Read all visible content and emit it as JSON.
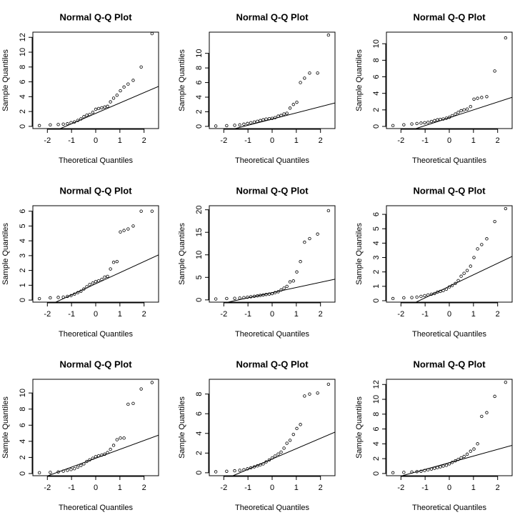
{
  "chart_data": [
    {
      "type": "qq",
      "title": "Normal Q-Q Plot",
      "x_label": "Theoretical Quantiles",
      "y_label": "Sample Quantiles",
      "xlim": [
        -2.6,
        2.6
      ],
      "xticks": [
        -2,
        -1,
        0,
        1,
        2
      ],
      "ylim": [
        -0.3,
        12.7
      ],
      "yticks": [
        0,
        2,
        4,
        6,
        8,
        10,
        12
      ],
      "color": "#000000",
      "x": [
        -2.33,
        -1.88,
        -1.55,
        -1.34,
        -1.17,
        -1.02,
        -0.88,
        -0.74,
        -0.61,
        -0.49,
        -0.37,
        -0.25,
        -0.12,
        0,
        0.12,
        0.25,
        0.37,
        0.49,
        0.61,
        0.74,
        0.88,
        1.02,
        1.17,
        1.34,
        1.55,
        1.88,
        2.33
      ],
      "values": [
        0.1,
        0.2,
        0.25,
        0.3,
        0.35,
        0.5,
        0.6,
        0.8,
        1.0,
        1.3,
        1.5,
        1.6,
        1.9,
        2.3,
        2.4,
        2.5,
        2.6,
        2.7,
        3.3,
        3.8,
        4.2,
        4.8,
        5.3,
        5.7,
        6.2,
        8.0,
        12.5
      ],
      "line": {
        "intercept": 1.75,
        "slope": 1.4
      }
    },
    {
      "type": "qq",
      "title": "Normal Q-Q Plot",
      "x_label": "Theoretical Quantiles",
      "y_label": "Sample Quantiles",
      "xlim": [
        -2.6,
        2.6
      ],
      "xticks": [
        -2,
        -1,
        0,
        1,
        2
      ],
      "ylim": [
        -0.3,
        12.9
      ],
      "yticks": [
        0,
        2,
        4,
        6,
        8,
        10
      ],
      "color": "#000000",
      "x": [
        -2.33,
        -1.88,
        -1.55,
        -1.34,
        -1.17,
        -1.02,
        -0.88,
        -0.74,
        -0.61,
        -0.49,
        -0.37,
        -0.25,
        -0.12,
        0,
        0.12,
        0.25,
        0.37,
        0.49,
        0.61,
        0.74,
        0.88,
        1.02,
        1.17,
        1.34,
        1.55,
        1.88,
        2.33
      ],
      "values": [
        0.05,
        0.1,
        0.15,
        0.2,
        0.3,
        0.4,
        0.5,
        0.6,
        0.7,
        0.8,
        0.9,
        1.0,
        1.05,
        1.1,
        1.2,
        1.4,
        1.5,
        1.7,
        1.8,
        2.5,
        3.0,
        3.3,
        6.0,
        6.6,
        7.3,
        7.3,
        12.5
      ],
      "line": {
        "intercept": 1.0,
        "slope": 0.85
      }
    },
    {
      "type": "qq",
      "title": "Normal Q-Q Plot",
      "x_label": "Theoretical Quantiles",
      "y_label": "Sample Quantiles",
      "xlim": [
        -2.6,
        2.6
      ],
      "xticks": [
        -2,
        -1,
        0,
        1,
        2
      ],
      "ylim": [
        -0.26,
        11.4
      ],
      "yticks": [
        0,
        2,
        4,
        6,
        8,
        10
      ],
      "color": "#000000",
      "x": [
        -2.33,
        -1.88,
        -1.55,
        -1.34,
        -1.17,
        -1.02,
        -0.88,
        -0.74,
        -0.61,
        -0.49,
        -0.37,
        -0.25,
        -0.12,
        0,
        0.12,
        0.25,
        0.37,
        0.49,
        0.61,
        0.74,
        0.88,
        1.02,
        1.17,
        1.34,
        1.55,
        1.88,
        2.33
      ],
      "values": [
        0.1,
        0.2,
        0.3,
        0.35,
        0.4,
        0.45,
        0.5,
        0.6,
        0.7,
        0.8,
        0.85,
        0.9,
        1.0,
        1.1,
        1.3,
        1.5,
        1.7,
        1.9,
        2.0,
        2.1,
        2.4,
        3.3,
        3.4,
        3.5,
        3.6,
        6.7,
        10.7
      ],
      "line": {
        "intercept": 1.05,
        "slope": 0.95
      }
    },
    {
      "type": "qq",
      "title": "Normal Q-Q Plot",
      "x_label": "Theoretical Quantiles",
      "y_label": "Sample Quantiles",
      "xlim": [
        -2.6,
        2.6
      ],
      "xticks": [
        -2,
        -1,
        0,
        1,
        2
      ],
      "ylim": [
        -0.14,
        6.37
      ],
      "yticks": [
        0,
        1,
        2,
        3,
        4,
        5,
        6
      ],
      "color": "#000000",
      "x": [
        -2.33,
        -1.88,
        -1.55,
        -1.34,
        -1.17,
        -1.02,
        -0.88,
        -0.74,
        -0.61,
        -0.49,
        -0.37,
        -0.25,
        -0.12,
        0,
        0.12,
        0.25,
        0.37,
        0.49,
        0.61,
        0.74,
        0.88,
        1.02,
        1.17,
        1.34,
        1.55,
        1.88,
        2.33
      ],
      "values": [
        0.1,
        0.15,
        0.18,
        0.2,
        0.25,
        0.3,
        0.4,
        0.5,
        0.6,
        0.75,
        0.9,
        1.05,
        1.15,
        1.25,
        1.3,
        1.4,
        1.55,
        1.6,
        2.1,
        2.55,
        2.6,
        4.6,
        4.7,
        4.8,
        5.0,
        6.0,
        6.0
      ],
      "line": {
        "intercept": 1.1,
        "slope": 0.75
      }
    },
    {
      "type": "qq",
      "title": "Normal Q-Q Plot",
      "x_label": "Theoretical Quantiles",
      "y_label": "Sample Quantiles",
      "xlim": [
        -2.6,
        2.6
      ],
      "xticks": [
        -2,
        -1,
        0,
        1,
        2
      ],
      "ylim": [
        -0.5,
        20.9
      ],
      "yticks": [
        0,
        5,
        10,
        15,
        20
      ],
      "color": "#000000",
      "x": [
        -2.33,
        -1.88,
        -1.55,
        -1.34,
        -1.17,
        -1.02,
        -0.88,
        -0.74,
        -0.61,
        -0.49,
        -0.37,
        -0.25,
        -0.12,
        0,
        0.12,
        0.25,
        0.37,
        0.49,
        0.61,
        0.74,
        0.88,
        1.02,
        1.17,
        1.34,
        1.55,
        1.88,
        2.33
      ],
      "values": [
        0.2,
        0.3,
        0.35,
        0.4,
        0.5,
        0.6,
        0.7,
        0.8,
        0.9,
        1.0,
        1.1,
        1.2,
        1.3,
        1.4,
        1.6,
        1.8,
        2.2,
        2.6,
        3.0,
        4.0,
        4.2,
        6.2,
        8.5,
        12.8,
        13.6,
        14.6,
        19.8
      ],
      "line": {
        "intercept": 1.6,
        "slope": 1.15
      }
    },
    {
      "type": "qq",
      "title": "Normal Q-Q Plot",
      "x_label": "Theoretical Quantiles",
      "y_label": "Sample Quantiles",
      "xlim": [
        -2.6,
        2.6
      ],
      "xticks": [
        -2,
        -1,
        0,
        1,
        2
      ],
      "ylim": [
        -0.1,
        6.6
      ],
      "yticks": [
        0,
        1,
        2,
        3,
        4,
        5,
        6
      ],
      "color": "#000000",
      "x": [
        -2.33,
        -1.88,
        -1.55,
        -1.34,
        -1.17,
        -1.02,
        -0.88,
        -0.74,
        -0.61,
        -0.49,
        -0.37,
        -0.25,
        -0.12,
        0,
        0.12,
        0.25,
        0.37,
        0.49,
        0.61,
        0.74,
        0.88,
        1.02,
        1.17,
        1.34,
        1.55,
        1.88,
        2.33
      ],
      "values": [
        0.15,
        0.2,
        0.22,
        0.25,
        0.3,
        0.35,
        0.4,
        0.45,
        0.5,
        0.6,
        0.65,
        0.7,
        0.8,
        0.95,
        1.05,
        1.2,
        1.4,
        1.7,
        1.9,
        2.1,
        2.4,
        3.0,
        3.6,
        3.9,
        4.3,
        5.5,
        6.4
      ],
      "line": {
        "intercept": 1.0,
        "slope": 0.8
      }
    },
    {
      "type": "qq",
      "title": "Normal Q-Q Plot",
      "x_label": "Theoretical Quantiles",
      "y_label": "Sample Quantiles",
      "xlim": [
        -2.6,
        2.6
      ],
      "xticks": [
        -2,
        -1,
        0,
        1,
        2
      ],
      "ylim": [
        -0.27,
        11.7
      ],
      "yticks": [
        0,
        2,
        4,
        6,
        8,
        10
      ],
      "color": "#000000",
      "x": [
        -2.33,
        -1.88,
        -1.55,
        -1.34,
        -1.17,
        -1.02,
        -0.88,
        -0.74,
        -0.61,
        -0.49,
        -0.37,
        -0.25,
        -0.12,
        0,
        0.12,
        0.25,
        0.37,
        0.49,
        0.61,
        0.74,
        0.88,
        1.02,
        1.17,
        1.34,
        1.55,
        1.88,
        2.33
      ],
      "values": [
        0.1,
        0.15,
        0.2,
        0.3,
        0.4,
        0.5,
        0.6,
        0.8,
        1.0,
        1.2,
        1.5,
        1.7,
        1.9,
        2.1,
        2.2,
        2.3,
        2.4,
        2.6,
        3.0,
        3.5,
        4.2,
        4.4,
        4.4,
        8.6,
        8.7,
        10.5,
        11.3
      ],
      "line": {
        "intercept": 1.9,
        "slope": 1.1
      }
    },
    {
      "type": "qq",
      "title": "Normal Q-Q Plot",
      "x_label": "Theoretical Quantiles",
      "y_label": "Sample Quantiles",
      "xlim": [
        -2.6,
        2.6
      ],
      "xticks": [
        -2,
        -1,
        0,
        1,
        2
      ],
      "ylim": [
        -0.3,
        9.5
      ],
      "yticks": [
        0,
        2,
        4,
        6,
        8
      ],
      "color": "#000000",
      "x": [
        -2.33,
        -1.88,
        -1.55,
        -1.34,
        -1.17,
        -1.02,
        -0.88,
        -0.74,
        -0.61,
        -0.49,
        -0.37,
        -0.25,
        -0.12,
        0,
        0.12,
        0.25,
        0.37,
        0.49,
        0.61,
        0.74,
        0.88,
        1.02,
        1.17,
        1.34,
        1.55,
        1.88,
        2.33
      ],
      "values": [
        0.1,
        0.15,
        0.2,
        0.25,
        0.3,
        0.4,
        0.5,
        0.6,
        0.7,
        0.8,
        0.9,
        1.1,
        1.3,
        1.5,
        1.7,
        1.9,
        2.1,
        2.5,
        3.0,
        3.3,
        3.9,
        4.5,
        4.9,
        7.8,
        8.0,
        8.1,
        9.0
      ],
      "line": {
        "intercept": 1.4,
        "slope": 1.05
      }
    },
    {
      "type": "qq",
      "title": "Normal Q-Q Plot",
      "x_label": "Theoretical Quantiles",
      "y_label": "Sample Quantiles",
      "xlim": [
        -2.6,
        2.6
      ],
      "xticks": [
        -2,
        -1,
        0,
        1,
        2
      ],
      "ylim": [
        -0.3,
        12.7
      ],
      "yticks": [
        0,
        2,
        4,
        6,
        8,
        10,
        12
      ],
      "color": "#000000",
      "x": [
        -2.33,
        -1.88,
        -1.55,
        -1.34,
        -1.17,
        -1.02,
        -0.88,
        -0.74,
        -0.61,
        -0.49,
        -0.37,
        -0.25,
        -0.12,
        0,
        0.12,
        0.25,
        0.37,
        0.49,
        0.61,
        0.74,
        0.88,
        1.02,
        1.17,
        1.34,
        1.55,
        1.88,
        2.33
      ],
      "values": [
        0.1,
        0.15,
        0.2,
        0.25,
        0.3,
        0.4,
        0.5,
        0.6,
        0.7,
        0.8,
        0.9,
        1.0,
        1.1,
        1.3,
        1.5,
        1.7,
        1.9,
        2.1,
        2.3,
        2.6,
        3.0,
        3.3,
        4.0,
        7.7,
        8.2,
        10.4,
        12.3
      ],
      "line": {
        "intercept": 1.45,
        "slope": 0.9
      }
    }
  ]
}
